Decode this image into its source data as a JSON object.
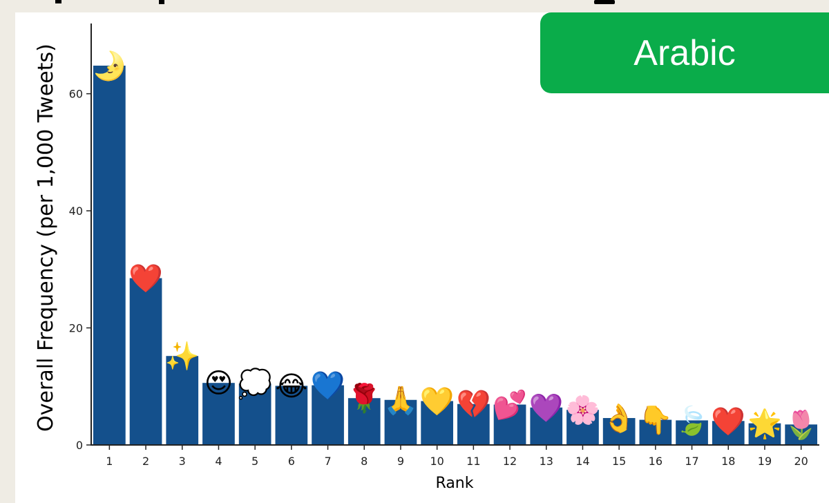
{
  "badge": {
    "label": "Arabic",
    "color": "#0aac4a"
  },
  "chart_data": {
    "type": "bar",
    "title": "",
    "xlabel": "Rank",
    "ylabel": "Overall Frequency (per 1,000 Tweets)",
    "ylim": [
      0,
      72
    ],
    "yticks": [
      0,
      20,
      40,
      60
    ],
    "bar_color": "#14508c",
    "grid": false,
    "categories": [
      "1",
      "2",
      "3",
      "4",
      "5",
      "6",
      "7",
      "8",
      "9",
      "10",
      "11",
      "12",
      "13",
      "14",
      "15",
      "16",
      "17",
      "18",
      "19",
      "20"
    ],
    "values": [
      64.8,
      28.5,
      15.2,
      10.6,
      10.5,
      10.1,
      10.2,
      8.0,
      7.7,
      7.5,
      7.0,
      6.9,
      6.4,
      6.0,
      4.6,
      4.3,
      4.2,
      4.1,
      3.7,
      3.5
    ],
    "emoji": [
      "🌛",
      "❤️",
      "✨",
      "😍",
      "💭",
      "😂",
      "💙",
      "🌹",
      "🙏",
      "💛",
      "💔",
      "💕",
      "💜",
      "🌸",
      "👌",
      "👇",
      "🍃",
      "❤️",
      "🌟",
      "🌷"
    ]
  }
}
